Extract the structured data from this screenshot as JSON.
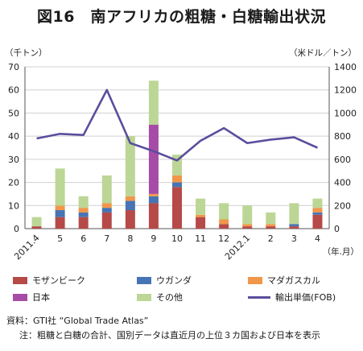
{
  "title": "図16　南アフリカの粗糖・白糖輸出状況",
  "left_unit": "（千トン）",
  "right_unit": "（米ドル／トン）",
  "x_unit": "（年.月）",
  "source": "資料：GTI社 “Global Trade Atlas”",
  "note": "注：粗糖と白糖の合計、国別データは直近月の上位３カ国および日本を表示",
  "colors": {
    "mozambique": "#b64a48",
    "uganda": "#4674b4",
    "madagascar": "#f0974a",
    "japan": "#a64ca6",
    "other": "#bcd696",
    "price": "#5a4e9e"
  },
  "chart_data": {
    "type": "bar",
    "stacked": true,
    "categories": [
      "2011.4",
      "5",
      "6",
      "7",
      "8",
      "9",
      "10",
      "11",
      "12",
      "2012.1",
      "2",
      "3",
      "4"
    ],
    "series": [
      {
        "name": "モザンビーク",
        "key": "mozambique",
        "values": [
          1,
          5,
          5,
          7,
          8,
          11,
          18,
          5,
          2,
          1,
          1,
          1,
          6
        ]
      },
      {
        "name": "ウガンダ",
        "key": "uganda",
        "values": [
          0,
          3,
          2,
          2,
          4,
          3,
          2,
          0,
          0,
          0,
          0,
          1,
          1
        ]
      },
      {
        "name": "マダガスカル",
        "key": "madagascar",
        "values": [
          0,
          2,
          2,
          2,
          2,
          1,
          3,
          1,
          2,
          1,
          1,
          0,
          2
        ]
      },
      {
        "name": "日本",
        "key": "japan",
        "values": [
          0,
          0,
          0,
          0,
          0,
          30,
          0,
          0,
          0,
          0,
          0,
          0,
          0
        ]
      },
      {
        "name": "その他",
        "key": "other",
        "values": [
          4,
          16,
          5,
          12,
          26,
          19,
          9,
          7,
          7,
          8,
          5,
          9,
          4
        ]
      }
    ],
    "line_series": {
      "name": "輸出単価(FOB)",
      "axis": "right",
      "values": [
        780,
        820,
        810,
        1200,
        740,
        670,
        590,
        760,
        870,
        740,
        770,
        790,
        700
      ]
    },
    "y_left": {
      "min": 0,
      "max": 70,
      "ticks": [
        0,
        10,
        20,
        30,
        40,
        50,
        60,
        70
      ]
    },
    "y_right": {
      "min": 0,
      "max": 1400,
      "ticks": [
        0,
        200,
        400,
        600,
        800,
        1000,
        1200,
        1400
      ]
    },
    "grid": true,
    "legend_position": "bottom"
  }
}
